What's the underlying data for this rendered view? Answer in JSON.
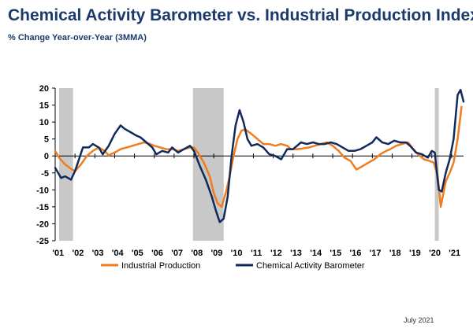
{
  "title": "Chemical Activity Barometer vs. Industrial Production Index",
  "subtitle": "% Change Year-over-Year (3MMA)",
  "footnote": "July 2021",
  "colors": {
    "industrial_production": "#f07c1f",
    "chemical_activity_barometer": "#102a5c",
    "recession": "#c8c8c8",
    "axis": "#000000"
  },
  "chart_data": {
    "type": "line",
    "xlabel": "",
    "ylabel": "",
    "x_ticks": [
      "'01",
      "'02",
      "'03",
      "'04",
      "'05",
      "'06",
      "'07",
      "'08",
      "'09",
      "'10",
      "'11",
      "'12",
      "'13",
      "'14",
      "'15",
      "'16",
      "'17",
      "'18",
      "'19",
      "'20",
      "'21"
    ],
    "ylim": [
      -25,
      20
    ],
    "y_ticks": [
      20,
      15,
      10,
      5,
      0,
      -5,
      -10,
      -15,
      -20,
      -25
    ],
    "x_range": [
      2001.0,
      2021.6
    ],
    "recession_bands": [
      [
        2001.2,
        2001.9
      ],
      [
        2007.95,
        2009.5
      ],
      [
        2020.15,
        2020.35
      ]
    ],
    "legend": {
      "position": "bottom"
    },
    "series": [
      {
        "name": "Industrial Production",
        "points": [
          [
            2001.0,
            1.5
          ],
          [
            2001.2,
            -0.5
          ],
          [
            2001.5,
            -2.5
          ],
          [
            2001.8,
            -3.8
          ],
          [
            2002.0,
            -4.5
          ],
          [
            2002.3,
            -2.5
          ],
          [
            2002.6,
            0.0
          ],
          [
            2002.9,
            1.5
          ],
          [
            2003.2,
            2.5
          ],
          [
            2003.5,
            1.5
          ],
          [
            2003.7,
            0.2
          ],
          [
            2004.0,
            1.0
          ],
          [
            2004.3,
            2.0
          ],
          [
            2004.6,
            2.5
          ],
          [
            2004.9,
            3.0
          ],
          [
            2005.2,
            3.5
          ],
          [
            2005.5,
            4.0
          ],
          [
            2005.8,
            3.5
          ],
          [
            2006.0,
            3.0
          ],
          [
            2006.3,
            2.5
          ],
          [
            2006.6,
            2.0
          ],
          [
            2006.9,
            2.0
          ],
          [
            2007.2,
            1.5
          ],
          [
            2007.5,
            2.0
          ],
          [
            2007.8,
            2.5
          ],
          [
            2008.0,
            2.5
          ],
          [
            2008.2,
            1.0
          ],
          [
            2008.5,
            -2.0
          ],
          [
            2008.8,
            -6.0
          ],
          [
            2009.0,
            -11.0
          ],
          [
            2009.2,
            -14.0
          ],
          [
            2009.4,
            -15.0
          ],
          [
            2009.6,
            -11.0
          ],
          [
            2009.8,
            -6.0
          ],
          [
            2010.0,
            0.0
          ],
          [
            2010.2,
            5.0
          ],
          [
            2010.4,
            7.5
          ],
          [
            2010.6,
            7.8
          ],
          [
            2010.9,
            6.5
          ],
          [
            2011.2,
            5.0
          ],
          [
            2011.5,
            3.5
          ],
          [
            2011.8,
            3.5
          ],
          [
            2012.1,
            3.0
          ],
          [
            2012.4,
            3.5
          ],
          [
            2012.7,
            3.0
          ],
          [
            2012.9,
            2.0
          ],
          [
            2013.2,
            2.0
          ],
          [
            2013.5,
            2.2
          ],
          [
            2013.8,
            2.5
          ],
          [
            2014.1,
            3.0
          ],
          [
            2014.4,
            3.5
          ],
          [
            2014.7,
            4.0
          ],
          [
            2015.0,
            3.0
          ],
          [
            2015.3,
            1.5
          ],
          [
            2015.6,
            -0.5
          ],
          [
            2015.9,
            -1.5
          ],
          [
            2016.2,
            -4.0
          ],
          [
            2016.5,
            -3.0
          ],
          [
            2016.8,
            -2.0
          ],
          [
            2017.1,
            -1.0
          ],
          [
            2017.4,
            0.5
          ],
          [
            2017.7,
            1.5
          ],
          [
            2017.9,
            2.0
          ],
          [
            2018.2,
            3.0
          ],
          [
            2018.5,
            3.5
          ],
          [
            2018.8,
            4.0
          ],
          [
            2019.0,
            2.5
          ],
          [
            2019.3,
            0.5
          ],
          [
            2019.6,
            -1.0
          ],
          [
            2019.9,
            -1.5
          ],
          [
            2020.1,
            -2.0
          ],
          [
            2020.3,
            -6.0
          ],
          [
            2020.45,
            -15.0
          ],
          [
            2020.7,
            -7.5
          ],
          [
            2020.9,
            -5.0
          ],
          [
            2021.1,
            -2.0
          ],
          [
            2021.3,
            5.0
          ],
          [
            2021.5,
            14.5
          ]
        ]
      },
      {
        "name": "Chemical Activity Barometer",
        "points": [
          [
            2001.0,
            -3.5
          ],
          [
            2001.3,
            -6.5
          ],
          [
            2001.5,
            -6.0
          ],
          [
            2001.8,
            -7.0
          ],
          [
            2002.0,
            -4.5
          ],
          [
            2002.2,
            -1.0
          ],
          [
            2002.4,
            2.5
          ],
          [
            2002.7,
            2.5
          ],
          [
            2002.9,
            3.5
          ],
          [
            2003.2,
            2.5
          ],
          [
            2003.4,
            0.5
          ],
          [
            2003.7,
            3.0
          ],
          [
            2004.0,
            6.5
          ],
          [
            2004.3,
            9.0
          ],
          [
            2004.5,
            8.0
          ],
          [
            2004.8,
            7.0
          ],
          [
            2005.1,
            6.0
          ],
          [
            2005.3,
            5.5
          ],
          [
            2005.6,
            4.0
          ],
          [
            2005.9,
            2.5
          ],
          [
            2006.1,
            0.5
          ],
          [
            2006.4,
            1.5
          ],
          [
            2006.7,
            1.0
          ],
          [
            2006.9,
            2.5
          ],
          [
            2007.2,
            1.0
          ],
          [
            2007.5,
            2.0
          ],
          [
            2007.8,
            3.0
          ],
          [
            2008.0,
            1.5
          ],
          [
            2008.3,
            -3.0
          ],
          [
            2008.6,
            -7.0
          ],
          [
            2008.9,
            -12.0
          ],
          [
            2009.1,
            -16.0
          ],
          [
            2009.3,
            -19.5
          ],
          [
            2009.5,
            -18.5
          ],
          [
            2009.7,
            -12.0
          ],
          [
            2009.9,
            0.0
          ],
          [
            2010.1,
            9.0
          ],
          [
            2010.3,
            13.5
          ],
          [
            2010.5,
            10.0
          ],
          [
            2010.7,
            5.0
          ],
          [
            2010.9,
            3.0
          ],
          [
            2011.2,
            3.5
          ],
          [
            2011.5,
            2.5
          ],
          [
            2011.8,
            0.5
          ],
          [
            2012.1,
            0.0
          ],
          [
            2012.4,
            -1.0
          ],
          [
            2012.7,
            2.0
          ],
          [
            2013.0,
            2.0
          ],
          [
            2013.2,
            3.0
          ],
          [
            2013.4,
            4.0
          ],
          [
            2013.7,
            3.5
          ],
          [
            2014.0,
            4.0
          ],
          [
            2014.3,
            3.5
          ],
          [
            2014.6,
            3.5
          ],
          [
            2014.9,
            4.0
          ],
          [
            2015.2,
            3.5
          ],
          [
            2015.5,
            2.5
          ],
          [
            2015.8,
            1.5
          ],
          [
            2016.1,
            1.5
          ],
          [
            2016.4,
            2.0
          ],
          [
            2016.7,
            3.0
          ],
          [
            2017.0,
            4.0
          ],
          [
            2017.2,
            5.5
          ],
          [
            2017.5,
            4.0
          ],
          [
            2017.8,
            3.5
          ],
          [
            2018.1,
            4.5
          ],
          [
            2018.4,
            4.0
          ],
          [
            2018.7,
            4.0
          ],
          [
            2018.9,
            3.0
          ],
          [
            2019.2,
            1.0
          ],
          [
            2019.5,
            0.5
          ],
          [
            2019.8,
            -0.5
          ],
          [
            2020.0,
            1.5
          ],
          [
            2020.15,
            1.0
          ],
          [
            2020.35,
            -10.0
          ],
          [
            2020.5,
            -10.5
          ],
          [
            2020.7,
            -5.0
          ],
          [
            2020.9,
            -1.0
          ],
          [
            2021.1,
            5.0
          ],
          [
            2021.3,
            18.0
          ],
          [
            2021.45,
            19.5
          ],
          [
            2021.6,
            16.0
          ]
        ]
      }
    ]
  }
}
